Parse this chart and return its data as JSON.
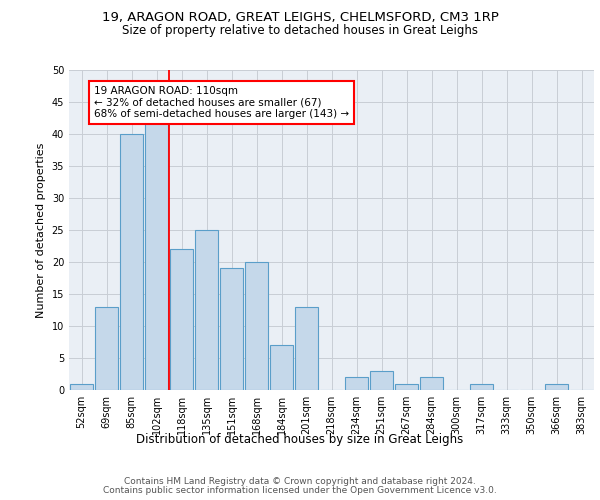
{
  "title_line1": "19, ARAGON ROAD, GREAT LEIGHS, CHELMSFORD, CM3 1RP",
  "title_line2": "Size of property relative to detached houses in Great Leighs",
  "xlabel": "Distribution of detached houses by size in Great Leighs",
  "ylabel": "Number of detached properties",
  "footer_line1": "Contains HM Land Registry data © Crown copyright and database right 2024.",
  "footer_line2": "Contains public sector information licensed under the Open Government Licence v3.0.",
  "categories": [
    "52sqm",
    "69sqm",
    "85sqm",
    "102sqm",
    "118sqm",
    "135sqm",
    "151sqm",
    "168sqm",
    "184sqm",
    "201sqm",
    "218sqm",
    "234sqm",
    "251sqm",
    "267sqm",
    "284sqm",
    "300sqm",
    "317sqm",
    "333sqm",
    "350sqm",
    "366sqm",
    "383sqm"
  ],
  "values": [
    1,
    13,
    40,
    42,
    22,
    25,
    19,
    20,
    7,
    13,
    0,
    2,
    3,
    1,
    2,
    0,
    1,
    0,
    0,
    1,
    0
  ],
  "bar_color": "#c5d8ea",
  "bar_edge_color": "#5a9ec9",
  "bar_edge_width": 0.8,
  "annotation_text_line1": "19 ARAGON ROAD: 110sqm",
  "annotation_text_line2": "← 32% of detached houses are smaller (67)",
  "annotation_text_line3": "68% of semi-detached houses are larger (143) →",
  "annotation_box_color": "white",
  "annotation_box_edge_color": "red",
  "vline_color": "red",
  "vline_x": 3.5,
  "ylim": [
    0,
    50
  ],
  "yticks": [
    0,
    5,
    10,
    15,
    20,
    25,
    30,
    35,
    40,
    45,
    50
  ],
  "grid_color": "#c8cdd4",
  "bg_color": "#eaeff5",
  "title_fontsize": 9.5,
  "subtitle_fontsize": 8.5,
  "axis_label_fontsize": 8,
  "tick_fontsize": 7,
  "annotation_fontsize": 7.5,
  "footer_fontsize": 6.5
}
